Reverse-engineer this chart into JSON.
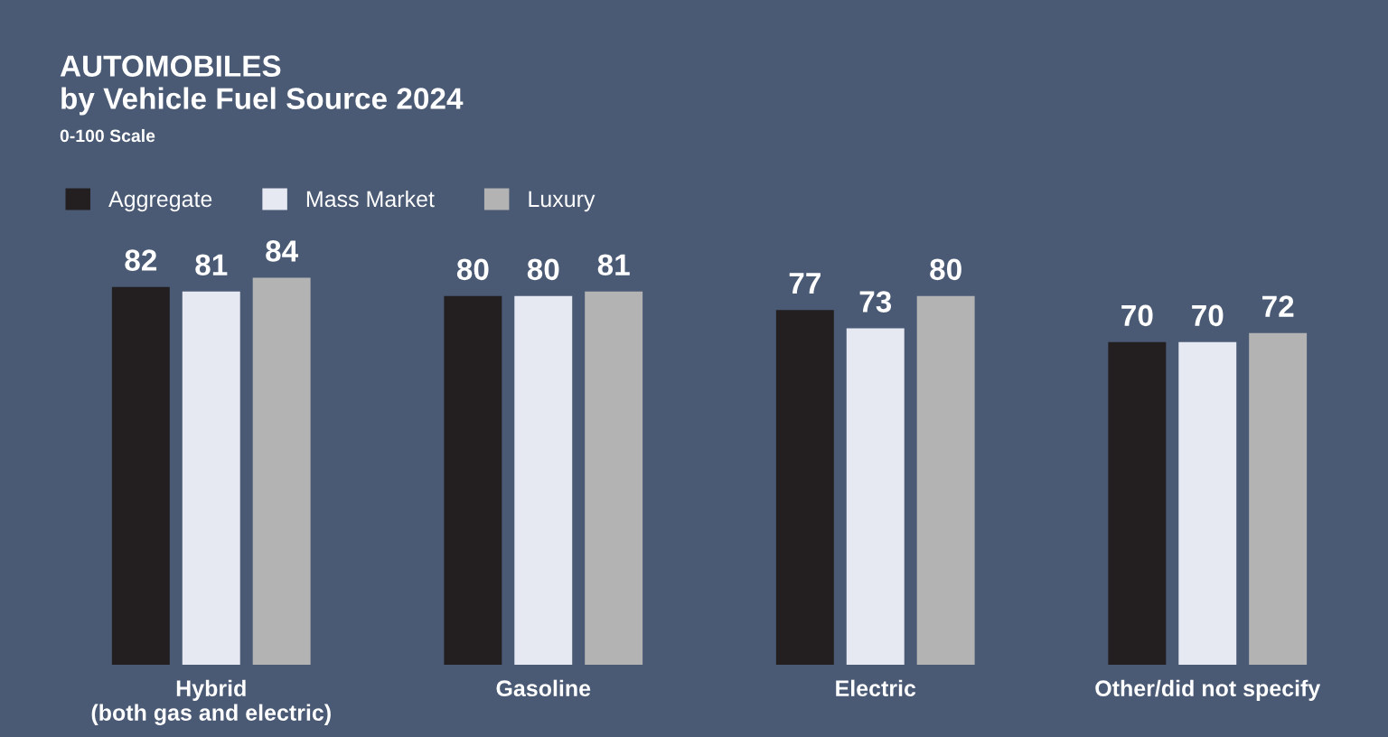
{
  "chart_data": {
    "type": "bar",
    "title": "AUTOMOBILES",
    "subtitle": "by Vehicle Fuel Source 2024",
    "annotations": [
      "0-100 Scale"
    ],
    "categories": [
      "Hybrid\n(both gas and electric)",
      "Gasoline",
      "Electric",
      "Other/did not specify"
    ],
    "series": [
      {
        "name": "Aggregate",
        "color": "#231f20",
        "values": [
          82,
          80,
          77,
          70
        ]
      },
      {
        "name": "Mass Market",
        "color": "#e6e9f2",
        "values": [
          81,
          80,
          73,
          70
        ]
      },
      {
        "name": "Luxury",
        "color": "#b3b3b3",
        "values": [
          84,
          81,
          80,
          72
        ]
      }
    ],
    "data_labels": true,
    "legend": "top left",
    "grid": false,
    "tick_labels": "x"
  }
}
